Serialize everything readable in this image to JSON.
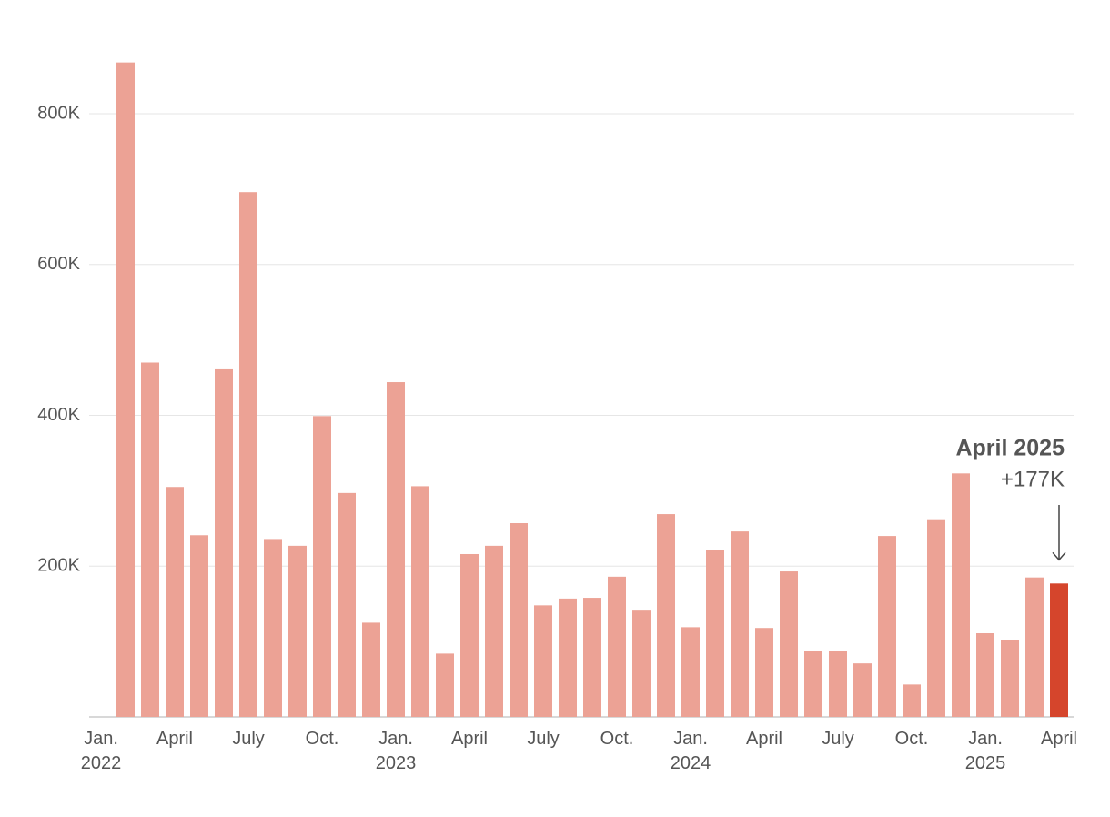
{
  "chart_data": {
    "type": "bar",
    "categories": [
      "Jan. 2022",
      null,
      null,
      "April",
      null,
      null,
      "July",
      null,
      null,
      "Oct.",
      null,
      null,
      "Jan. 2023",
      null,
      null,
      "April",
      null,
      null,
      "July",
      null,
      null,
      "Oct.",
      null,
      null,
      "Jan. 2024",
      null,
      null,
      "April",
      null,
      null,
      "July",
      null,
      null,
      "Oct.",
      null,
      null,
      "Jan. 2025",
      null,
      null,
      "April"
    ],
    "values": [
      null,
      868000,
      470000,
      305000,
      241000,
      461000,
      696000,
      236000,
      227000,
      399000,
      297000,
      125000,
      444000,
      306000,
      84000,
      216000,
      227000,
      257000,
      148000,
      157000,
      158000,
      186000,
      141000,
      269000,
      119000,
      222000,
      246000,
      118000,
      193000,
      87000,
      88000,
      71000,
      240000,
      43000,
      261000,
      323000,
      111000,
      102000,
      185000,
      177000
    ],
    "colors": [
      "#eca295",
      "#eca295",
      "#eca295",
      "#eca295",
      "#eca295",
      "#eca295",
      "#eca295",
      "#eca295",
      "#eca295",
      "#eca295",
      "#eca295",
      "#eca295",
      "#eca295",
      "#eca295",
      "#eca295",
      "#eca295",
      "#eca295",
      "#eca295",
      "#eca295",
      "#eca295",
      "#eca295",
      "#eca295",
      "#eca295",
      "#eca295",
      "#eca295",
      "#eca295",
      "#eca295",
      "#eca295",
      "#eca295",
      "#eca295",
      "#eca295",
      "#eca295",
      "#eca295",
      "#eca295",
      "#eca295",
      "#eca295",
      "#eca295",
      "#eca295",
      "#eca295",
      "#d5452c"
    ],
    "annotation": {
      "title": "April 2025",
      "label": "+177K"
    },
    "ylim": [
      0,
      880000
    ],
    "yticks": [
      {
        "value": 200000,
        "label": "200K"
      },
      {
        "value": 400000,
        "label": "400K"
      },
      {
        "value": 600000,
        "label": "600K"
      },
      {
        "value": 800000,
        "label": "800K"
      }
    ],
    "grid": true
  }
}
